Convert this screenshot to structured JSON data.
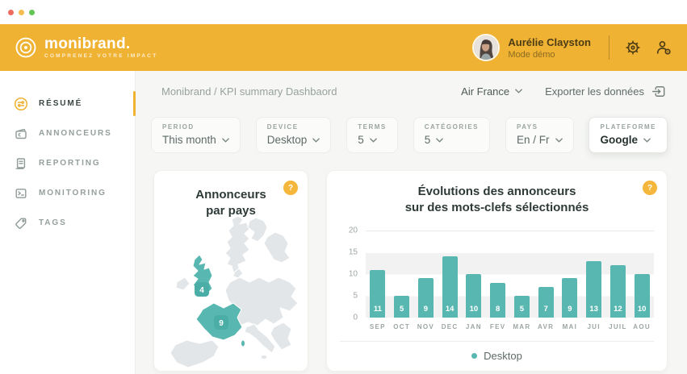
{
  "header": {
    "brand_name": "monibrand.",
    "brand_tagline": "COMPRENEZ VOTRE IMPACT",
    "user_name": "Aurélie Clayston",
    "user_mode": "Mode démo"
  },
  "sidebar": {
    "items": [
      {
        "id": "resume",
        "label": "RÉSUMÉ",
        "icon": "filter-circle",
        "active": true
      },
      {
        "id": "annonceurs",
        "label": "ANNONCEURS",
        "icon": "wallet",
        "active": false
      },
      {
        "id": "reporting",
        "label": "REPORTING",
        "icon": "report",
        "active": false
      },
      {
        "id": "monitoring",
        "label": "MONITORING",
        "icon": "terminal",
        "active": false
      },
      {
        "id": "tags",
        "label": "TAGS",
        "icon": "tag",
        "active": false
      }
    ]
  },
  "toolbar": {
    "breadcrumb": "Monibrand / KPI summary Dashbaord",
    "account": "Air France",
    "export_label": "Exporter les données"
  },
  "filters": [
    {
      "id": "period",
      "label": "PERIOD",
      "value": "This month",
      "highlighted": false
    },
    {
      "id": "device",
      "label": "DEVICE",
      "value": "Desktop",
      "highlighted": false
    },
    {
      "id": "terms",
      "label": "TERMS",
      "value": "5",
      "highlighted": false
    },
    {
      "id": "categories",
      "label": "CATÉGORIES",
      "value": "5",
      "highlighted": false
    },
    {
      "id": "pays",
      "label": "PAYS",
      "value": "En / Fr",
      "highlighted": false
    },
    {
      "id": "plateforme",
      "label": "PLATEFORME",
      "value": "Google",
      "highlighted": true
    }
  ],
  "map_card": {
    "title_line1": "Annonceurs",
    "title_line2": "par pays",
    "help": "?",
    "countries": [
      {
        "region": "united-kingdom",
        "value": 4
      },
      {
        "region": "france",
        "value": 9
      }
    ]
  },
  "chart_card": {
    "title_line1": "Évolutions des annonceurs",
    "title_line2": "sur des mots-clefs sélectionnés",
    "help": "?"
  },
  "chart_data": {
    "type": "bar",
    "title": "Évolutions des annonceurs sur des mots-clefs sélectionnés",
    "categories": [
      "SEP",
      "OCT",
      "NOV",
      "DEC",
      "JAN",
      "FEV",
      "MAR",
      "AVR",
      "MAI",
      "JUI",
      "JUIL",
      "AOU"
    ],
    "series": [
      {
        "name": "Desktop",
        "values": [
          11,
          5,
          9,
          14,
          10,
          8,
          5,
          7,
          9,
          13,
          12,
          10
        ]
      }
    ],
    "yticks": [
      20,
      15,
      10,
      5,
      0
    ],
    "ylim": [
      0,
      20
    ],
    "grid_bands": "alternating-horizontal",
    "legend_position": "bottom",
    "bar_color": "#58B7B0"
  },
  "colors": {
    "accent_yellow": "#F0B232",
    "help_yellow": "#F5B73B",
    "teal": "#58B7B0",
    "map_gray": "#E3E6E8",
    "traffic_red": "#EE6A5F",
    "traffic_yellow": "#F5BD4F",
    "traffic_green": "#62C554"
  }
}
